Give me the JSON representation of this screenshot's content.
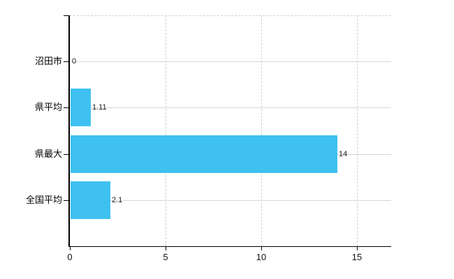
{
  "chart_data": {
    "type": "bar",
    "orientation": "horizontal",
    "title": "",
    "categories": [
      "沼田市",
      "県平均",
      "県最大",
      "全国平均"
    ],
    "values": [
      0,
      1.11,
      14,
      2.1
    ],
    "value_labels": [
      "0",
      "1.11",
      "14",
      "2.1"
    ],
    "x_ticks": [
      0,
      5,
      10,
      15
    ],
    "x_tick_labels": [
      "0",
      "5",
      "10",
      "15"
    ],
    "xlim": [
      0,
      16.8
    ],
    "grid": true,
    "legend": false,
    "colors": {
      "bar": "#3EC1F0",
      "axis": "#000000",
      "gridline": "#D6D6D6",
      "dashed_line": "#CFCFCF",
      "text": "#111111",
      "background": "#FFFFFF"
    }
  }
}
